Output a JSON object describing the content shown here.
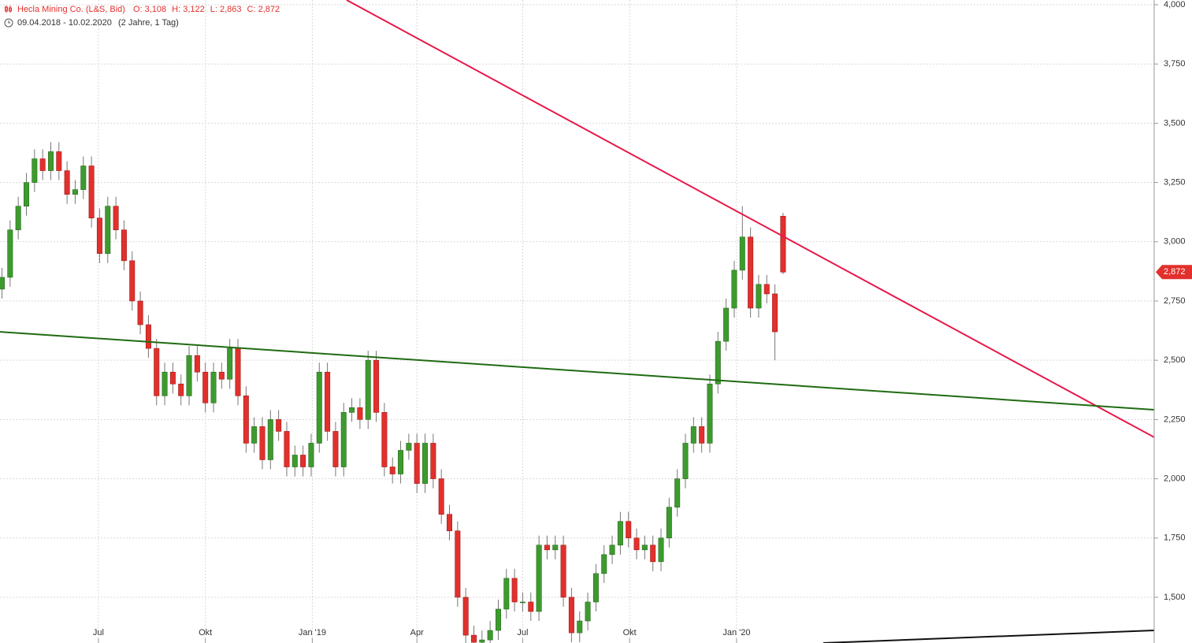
{
  "chart_data": {
    "type": "candlestick",
    "title": "Hecla Mining Co. (L&S, Bid)",
    "ohlc_labels": [
      "O: 3,108",
      "H: 3,122",
      "L: 2,863",
      "C: 2,872"
    ],
    "date_range": "09.04.2018 - 10.02.2020",
    "period": "(2 Jahre, 1 Tag)",
    "last_label": "2,872",
    "up_color": "#3d9b2e",
    "down_color": "#e2302c",
    "grid": true,
    "xlim": [
      -1.7,
      991.3
    ],
    "ylim": [
      1.307,
      4.02
    ],
    "xticks": [
      {
        "value": 83,
        "label": "Jul"
      },
      {
        "value": 175,
        "label": "Okt"
      },
      {
        "value": 267,
        "label": "Jan '19"
      },
      {
        "value": 357,
        "label": "Apr"
      },
      {
        "value": 448,
        "label": "Jul"
      },
      {
        "value": 540,
        "label": "Okt"
      },
      {
        "value": 632,
        "label": "Jan '20"
      }
    ],
    "yticks": [
      {
        "value": 1.5,
        "label": "1,500"
      },
      {
        "value": 1.75,
        "label": "1,750"
      },
      {
        "value": 2,
        "label": "2,000"
      },
      {
        "value": 2.25,
        "label": "2,250"
      },
      {
        "value": 2.5,
        "label": "2,500"
      },
      {
        "value": 2.75,
        "label": "2,750"
      },
      {
        "value": 3,
        "label": "3,000"
      },
      {
        "value": 3.25,
        "label": "3,250"
      },
      {
        "value": 3.5,
        "label": "3,500"
      },
      {
        "value": 3.75,
        "label": "3,750"
      },
      {
        "value": 4,
        "label": "4,000"
      }
    ],
    "x": [
      0,
      7,
      14,
      21,
      28,
      35,
      42,
      49,
      56,
      63,
      70,
      77,
      84,
      91,
      98,
      105,
      112,
      119,
      126,
      133,
      140,
      147,
      154,
      161,
      168,
      175,
      182,
      189,
      196,
      203,
      210,
      217,
      224,
      231,
      238,
      245,
      252,
      259,
      266,
      273,
      280,
      287,
      294,
      301,
      308,
      315,
      322,
      329,
      336,
      343,
      350,
      357,
      364,
      371,
      378,
      385,
      392,
      399,
      406,
      413,
      420,
      427,
      434,
      441,
      448,
      455,
      462,
      469,
      476,
      483,
      490,
      497,
      504,
      511,
      518,
      525,
      532,
      539,
      546,
      553,
      560,
      567,
      574,
      581,
      588,
      595,
      602,
      609,
      616,
      623,
      630,
      637,
      644,
      651,
      658,
      665,
      672
    ],
    "open": [
      2.8,
      2.85,
      3.05,
      3.15,
      3.25,
      3.35,
      3.3,
      3.38,
      3.3,
      3.2,
      3.22,
      3.32,
      3.1,
      2.95,
      3.15,
      3.05,
      2.92,
      2.75,
      2.65,
      2.55,
      2.35,
      2.45,
      2.4,
      2.35,
      2.52,
      2.45,
      2.32,
      2.45,
      2.42,
      2.55,
      2.35,
      2.15,
      2.22,
      2.08,
      2.25,
      2.2,
      2.05,
      2.1,
      2.05,
      2.15,
      2.45,
      2.2,
      2.05,
      2.28,
      2.3,
      2.25,
      2.5,
      2.28,
      2.05,
      2.02,
      2.12,
      2.15,
      1.98,
      2.15,
      2.0,
      1.85,
      1.78,
      1.5,
      1.34,
      1.31,
      1.32,
      1.36,
      1.45,
      1.58,
      1.48,
      1.48,
      1.44,
      1.72,
      1.7,
      1.72,
      1.5,
      1.35,
      1.4,
      1.48,
      1.6,
      1.68,
      1.72,
      1.82,
      1.75,
      1.7,
      1.72,
      1.65,
      1.75,
      1.88,
      2.0,
      2.15,
      2.22,
      2.15,
      2.4,
      2.58,
      2.72,
      2.88,
      3.02,
      2.72,
      2.82,
      2.78,
      3.108
    ],
    "high": [
      2.89,
      3.09,
      3.19,
      3.29,
      3.39,
      3.39,
      3.42,
      3.42,
      3.34,
      3.26,
      3.36,
      3.36,
      3.14,
      3.19,
      3.19,
      3.09,
      2.96,
      2.79,
      2.69,
      2.59,
      2.49,
      2.49,
      2.44,
      2.56,
      2.56,
      2.49,
      2.49,
      2.49,
      2.59,
      2.59,
      2.39,
      2.26,
      2.26,
      2.29,
      2.29,
      2.24,
      2.14,
      2.14,
      2.19,
      2.49,
      2.49,
      2.24,
      2.32,
      2.34,
      2.34,
      2.54,
      2.54,
      2.32,
      2.09,
      2.16,
      2.19,
      2.19,
      2.19,
      2.19,
      2.04,
      1.89,
      1.82,
      1.54,
      1.38,
      1.36,
      1.4,
      1.49,
      1.62,
      1.62,
      1.52,
      1.52,
      1.76,
      1.76,
      1.76,
      1.76,
      1.54,
      1.44,
      1.52,
      1.64,
      1.72,
      1.76,
      1.86,
      1.86,
      1.79,
      1.76,
      1.76,
      1.79,
      1.92,
      2.04,
      2.19,
      2.26,
      2.26,
      2.44,
      2.62,
      2.76,
      2.92,
      3.15,
      3.06,
      2.86,
      2.86,
      2.82,
      3.122
    ],
    "low": [
      2.76,
      2.81,
      3.01,
      3.11,
      3.21,
      3.26,
      3.26,
      3.26,
      3.16,
      3.16,
      3.18,
      3.06,
      2.91,
      2.91,
      3.01,
      2.88,
      2.71,
      2.61,
      2.51,
      2.31,
      2.31,
      2.36,
      2.31,
      2.31,
      2.41,
      2.28,
      2.28,
      2.38,
      2.38,
      2.31,
      2.11,
      2.11,
      2.04,
      2.04,
      2.16,
      2.01,
      2.01,
      2.01,
      2.01,
      2.11,
      2.16,
      2.01,
      2.01,
      2.24,
      2.21,
      2.21,
      2.24,
      2.01,
      1.98,
      1.98,
      2.08,
      1.94,
      1.94,
      1.96,
      1.81,
      1.74,
      1.46,
      1.3,
      1.27,
      1.27,
      1.28,
      1.32,
      1.41,
      1.44,
      1.44,
      1.4,
      1.4,
      1.66,
      1.66,
      1.46,
      1.31,
      1.31,
      1.36,
      1.44,
      1.56,
      1.64,
      1.68,
      1.71,
      1.66,
      1.66,
      1.61,
      1.61,
      1.71,
      1.84,
      1.96,
      2.11,
      2.11,
      2.11,
      2.36,
      2.54,
      2.68,
      2.84,
      2.68,
      2.68,
      2.74,
      2.5,
      2.863
    ],
    "close": [
      2.85,
      3.05,
      3.15,
      3.25,
      3.35,
      3.3,
      3.38,
      3.3,
      3.2,
      3.22,
      3.32,
      3.1,
      2.95,
      3.15,
      3.05,
      2.92,
      2.75,
      2.65,
      2.55,
      2.35,
      2.45,
      2.4,
      2.35,
      2.52,
      2.45,
      2.32,
      2.45,
      2.42,
      2.55,
      2.35,
      2.15,
      2.22,
      2.08,
      2.25,
      2.2,
      2.05,
      2.1,
      2.05,
      2.15,
      2.45,
      2.2,
      2.05,
      2.28,
      2.3,
      2.25,
      2.5,
      2.28,
      2.05,
      2.02,
      2.12,
      2.15,
      1.98,
      2.15,
      2.0,
      1.85,
      1.78,
      1.5,
      1.34,
      1.31,
      1.32,
      1.36,
      1.45,
      1.58,
      1.48,
      1.48,
      1.44,
      1.72,
      1.7,
      1.72,
      1.5,
      1.35,
      1.4,
      1.48,
      1.6,
      1.68,
      1.72,
      1.82,
      1.75,
      1.7,
      1.72,
      1.65,
      1.75,
      1.88,
      2.0,
      2.15,
      2.22,
      2.15,
      2.4,
      2.58,
      2.72,
      2.88,
      3.02,
      2.72,
      2.82,
      2.78,
      2.62,
      2.872
    ],
    "trendlines": [
      {
        "color": "#e8174a",
        "x": [
          296.5,
          991.3
        ],
        "y": [
          4.02,
          2.175
        ]
      },
      {
        "color": "#1f6b12",
        "x": [
          -1.7,
          991.3
        ],
        "y": [
          2.62,
          2.291
        ]
      },
      {
        "color": "#111111",
        "x": [
          706.6,
          991.3
        ],
        "y": [
          1.307,
          1.36
        ]
      }
    ]
  }
}
